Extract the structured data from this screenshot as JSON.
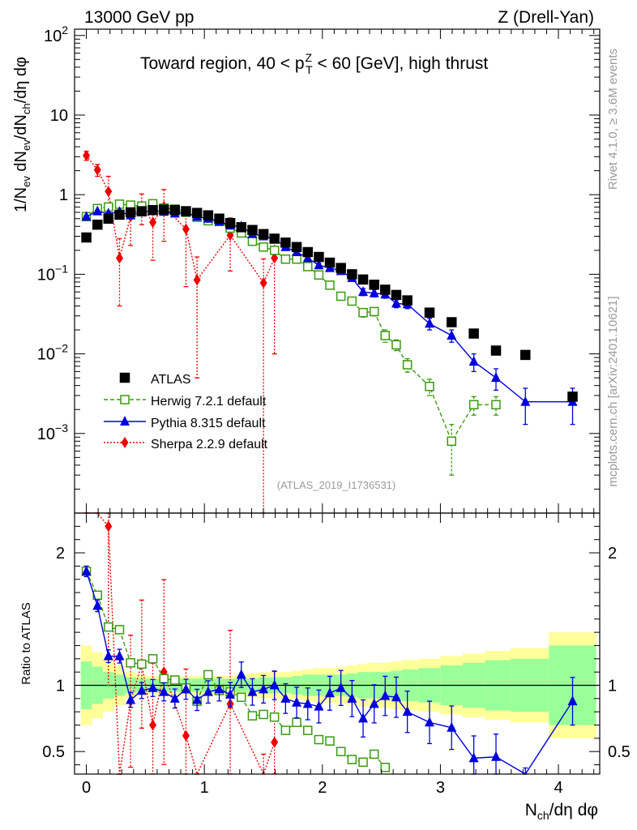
{
  "header": {
    "left": "13000 GeV pp",
    "right": "Z (Drell-Yan)"
  },
  "side": {
    "rivet": "Rivet 4.1.0, ≥ 3.6M events",
    "mcplots": "mcplots.cern.ch [arXiv:2401.10621]"
  },
  "chart_data": {
    "type": "scatter",
    "title": {
      "pre": "Toward region, 40 < p",
      "sup": "Z",
      "sub": "T",
      "post": " < 60 [GeV], high thrust"
    },
    "watermark": "(ATLAS_2019_I1736531)",
    "ylabel": "1/N_ev dN_ev/dN_ch/dη dφ",
    "xlabel": "N_ch/dη dφ",
    "ratio_ylabel": "Ratio to ATLAS",
    "xlim": [
      -0.1,
      4.35
    ],
    "ylim": [
      0.0001,
      120
    ],
    "ratio_ylim": [
      0.33,
      2.3
    ],
    "xticks": [
      "0",
      "1",
      "2",
      "3",
      "4"
    ],
    "yticks": [
      {
        "base": "10",
        "exp": "2"
      },
      {
        "base": "10",
        "exp": ""
      },
      {
        "base": "1",
        "exp": ""
      },
      {
        "base": "10",
        "exp": "−1"
      },
      {
        "base": "10",
        "exp": "−2"
      },
      {
        "base": "10",
        "exp": "−3"
      }
    ],
    "ratio_yticks": [
      "2",
      "1",
      "0.5"
    ],
    "legend": [
      {
        "label": "ATLAS",
        "color": "#000000"
      },
      {
        "label": "Herwig 7.2.1 default",
        "color": "#3a9a10"
      },
      {
        "label": "Pythia 8.315 default",
        "color": "#0000dd"
      },
      {
        "label": "Sherpa 2.2.9 default",
        "color": "#ee0000"
      }
    ],
    "series": [
      {
        "name": "ATLAS",
        "x": [
          0.0,
          0.094,
          0.187,
          0.281,
          0.375,
          0.469,
          0.563,
          0.657,
          0.75,
          0.844,
          0.938,
          1.032,
          1.126,
          1.219,
          1.313,
          1.407,
          1.501,
          1.594,
          1.688,
          1.782,
          1.876,
          1.97,
          2.063,
          2.157,
          2.251,
          2.345,
          2.439,
          2.532,
          2.626,
          2.72,
          2.908,
          3.095,
          3.283,
          3.471,
          3.72,
          4.12
        ],
        "y": [
          0.29,
          0.42,
          0.5,
          0.56,
          0.6,
          0.62,
          0.64,
          0.65,
          0.64,
          0.62,
          0.59,
          0.55,
          0.5,
          0.44,
          0.39,
          0.36,
          0.32,
          0.28,
          0.25,
          0.22,
          0.19,
          0.165,
          0.14,
          0.12,
          0.1,
          0.086,
          0.074,
          0.064,
          0.055,
          0.047,
          0.033,
          0.025,
          0.018,
          0.011,
          0.0097,
          0.0029
        ]
      },
      {
        "name": "Herwig 7.2.1 default",
        "x": [
          0.0,
          0.094,
          0.187,
          0.281,
          0.375,
          0.469,
          0.563,
          0.657,
          0.75,
          0.844,
          0.938,
          1.032,
          1.126,
          1.219,
          1.313,
          1.407,
          1.501,
          1.594,
          1.688,
          1.782,
          1.876,
          1.97,
          2.063,
          2.157,
          2.251,
          2.345,
          2.439,
          2.532,
          2.626,
          2.72,
          2.908,
          3.095,
          3.283,
          3.471
        ],
        "y": [
          0.53,
          0.67,
          0.7,
          0.76,
          0.74,
          0.72,
          0.77,
          0.68,
          0.66,
          0.6,
          0.52,
          0.47,
          0.46,
          0.38,
          0.33,
          0.26,
          0.22,
          0.2,
          0.155,
          0.155,
          0.125,
          0.098,
          0.073,
          0.053,
          0.046,
          0.033,
          0.034,
          0.017,
          0.013,
          0.0073,
          0.0039,
          0.0008,
          0.0023,
          0.0023
        ],
        "yerr": [
          0.02,
          0.02,
          0.02,
          0.02,
          0.02,
          0.02,
          0.02,
          0.02,
          0.02,
          0.02,
          0.02,
          0.02,
          0.02,
          0.02,
          0.01,
          0.01,
          0.01,
          0.01,
          0.01,
          0.01,
          0.008,
          0.006,
          0.005,
          0.004,
          0.004,
          0.004,
          0.004,
          0.003,
          0.002,
          0.0014,
          0.0009,
          0.0005,
          0.0006,
          0.0006
        ]
      },
      {
        "name": "Pythia 8.315 default",
        "x": [
          0.0,
          0.094,
          0.187,
          0.281,
          0.375,
          0.469,
          0.563,
          0.657,
          0.75,
          0.844,
          0.938,
          1.032,
          1.126,
          1.219,
          1.313,
          1.407,
          1.501,
          1.594,
          1.688,
          1.782,
          1.876,
          1.97,
          2.063,
          2.157,
          2.251,
          2.345,
          2.439,
          2.532,
          2.626,
          2.72,
          2.908,
          3.095,
          3.283,
          3.471,
          3.72,
          4.12
        ],
        "y": [
          0.53,
          0.62,
          0.58,
          0.61,
          0.55,
          0.6,
          0.63,
          0.61,
          0.58,
          0.6,
          0.53,
          0.5,
          0.46,
          0.41,
          0.4,
          0.32,
          0.3,
          0.28,
          0.22,
          0.19,
          0.16,
          0.13,
          0.12,
          0.11,
          0.09,
          0.06,
          0.058,
          0.056,
          0.043,
          0.042,
          0.024,
          0.017,
          0.008,
          0.005,
          0.0025,
          0.0025
        ],
        "yerr": [
          0.02,
          0.02,
          0.02,
          0.02,
          0.02,
          0.02,
          0.02,
          0.02,
          0.02,
          0.02,
          0.02,
          0.02,
          0.02,
          0.02,
          0.02,
          0.01,
          0.01,
          0.01,
          0.01,
          0.01,
          0.008,
          0.008,
          0.007,
          0.006,
          0.006,
          0.006,
          0.006,
          0.006,
          0.005,
          0.005,
          0.004,
          0.003,
          0.002,
          0.0015,
          0.0012,
          0.0012
        ]
      },
      {
        "name": "Sherpa 2.2.9 default",
        "x": [
          0.0,
          0.094,
          0.187,
          0.281,
          0.375,
          0.469,
          0.563,
          0.657,
          0.844,
          0.938,
          1.219,
          1.501,
          1.594
        ],
        "y": [
          3.1,
          2.05,
          1.1,
          0.16,
          0.53,
          0.72,
          0.45,
          0.71,
          0.37,
          0.085,
          0.31,
          0.078,
          0.16
        ],
        "yerr": [
          0.4,
          0.35,
          0.6,
          0.12,
          0.3,
          0.3,
          0.3,
          0.45,
          0.3,
          0.08,
          0.2,
          0.078,
          0.15
        ]
      }
    ],
    "ratio": {
      "Herwig": [
        1.86,
        1.68,
        1.44,
        1.42,
        1.17,
        1.16,
        1.2,
        1.05,
        1.04,
        0.98,
        0.88,
        1.08,
        0.96,
        0.95,
        0.91,
        0.77,
        0.78,
        0.76,
        0.66,
        0.72,
        0.66,
        0.59,
        0.58,
        0.5,
        0.44,
        0.42,
        0.48,
        0.38
      ],
      "Pythia": [
        1.86,
        1.6,
        1.22,
        1.22,
        0.89,
        0.96,
        0.98,
        0.95,
        0.9,
        0.97,
        0.89,
        0.95,
        0.97,
        0.93,
        1.08,
        0.95,
        0.97,
        1.0,
        0.9,
        0.87,
        0.86,
        0.84,
        0.94,
        0.98,
        0.9,
        0.75,
        0.86,
        0.92,
        0.91,
        0.8,
        0.72,
        0.68,
        0.45,
        0.46,
        0.2,
        0.88
      ],
      "Sherpa": [
        10.0,
        4.9,
        2.2,
        0.16,
        0.88,
        1.16,
        0.7,
        1.1,
        0.62,
        0.15,
        0.86,
        0.24,
        0.57
      ],
      "band_inner": [
        0.18,
        0.14,
        0.1,
        0.08,
        0.06,
        0.05,
        0.05,
        0.05,
        0.05,
        0.05,
        0.05,
        0.05,
        0.05,
        0.05,
        0.05,
        0.05,
        0.06,
        0.06,
        0.06,
        0.07,
        0.08,
        0.08,
        0.08,
        0.08,
        0.09,
        0.1,
        0.1,
        0.1,
        0.11,
        0.12,
        0.13,
        0.15,
        0.17,
        0.19,
        0.2,
        0.3
      ],
      "band_outer": [
        0.3,
        0.25,
        0.2,
        0.15,
        0.1,
        0.08,
        0.07,
        0.07,
        0.07,
        0.07,
        0.07,
        0.07,
        0.07,
        0.07,
        0.08,
        0.09,
        0.1,
        0.1,
        0.1,
        0.11,
        0.12,
        0.13,
        0.13,
        0.14,
        0.15,
        0.16,
        0.17,
        0.17,
        0.18,
        0.19,
        0.2,
        0.22,
        0.24,
        0.26,
        0.28,
        0.4
      ]
    }
  }
}
